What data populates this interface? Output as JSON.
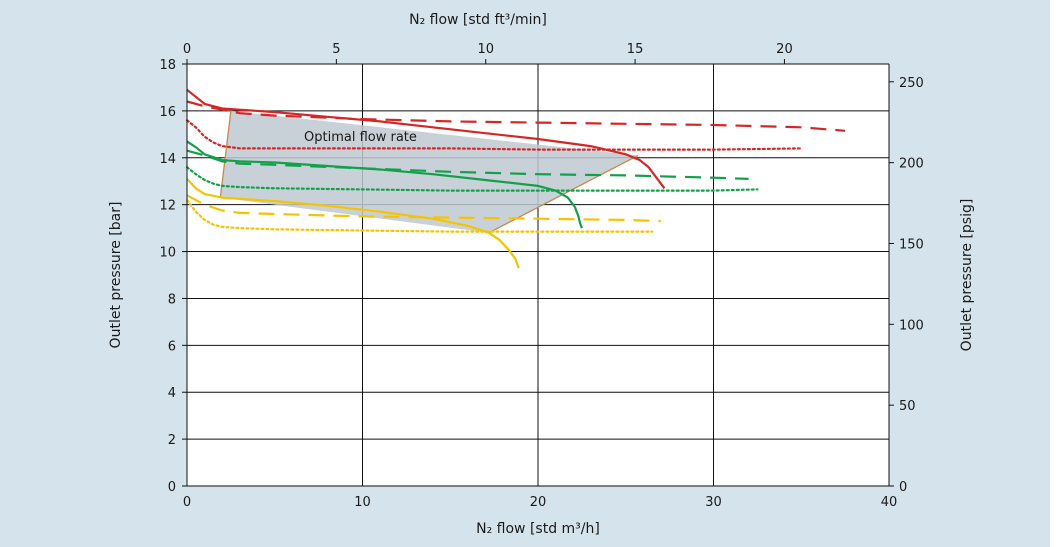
{
  "chart_data": {
    "type": "line",
    "title": "",
    "axes": {
      "bottom_label": "N₂ flow [std m³/h]",
      "top_label": "N₂ flow [std ft³/min]",
      "left_label": "Outlet pressure [bar]",
      "right_label": "Outlet pressure [psig]",
      "bottom": {
        "range": [
          0,
          40
        ],
        "ticks": [
          "0",
          "10",
          "20",
          "30",
          "40"
        ]
      },
      "top": {
        "range": [
          0,
          23.5
        ],
        "ticks": [
          "0",
          "5",
          "10",
          "15",
          "20"
        ]
      },
      "left": {
        "range": [
          0,
          18
        ],
        "ticks": [
          "0",
          "2",
          "4",
          "6",
          "8",
          "10",
          "12",
          "14",
          "16",
          "18"
        ]
      },
      "right": {
        "range": [
          0,
          261
        ],
        "ticks": [
          "0",
          "50",
          "100",
          "150",
          "200",
          "250"
        ]
      }
    },
    "grid": true,
    "annotation": "Optimal flow rate",
    "colors": {
      "red": "#d62728",
      "green": "#12a04a",
      "yellow": "#f5c400",
      "region": "#c0c9d1",
      "boundary": "#c9894c"
    },
    "optimal_region": {
      "x": [
        2.5,
        1.9,
        17.2,
        25.7
      ],
      "y": [
        16.0,
        12.3,
        10.8,
        14.1
      ]
    },
    "series": [
      {
        "color": "red",
        "style": "solid",
        "x": [
          0,
          0.5,
          1,
          2,
          3,
          5,
          8,
          11,
          14,
          17,
          20,
          23,
          25,
          25.8,
          26.3,
          26.6,
          27.0,
          27.2
        ],
        "y": [
          16.9,
          16.6,
          16.3,
          16.1,
          16.05,
          15.95,
          15.75,
          15.55,
          15.3,
          15.05,
          14.8,
          14.5,
          14.15,
          13.9,
          13.6,
          13.3,
          12.9,
          12.7
        ]
      },
      {
        "color": "red",
        "style": "dashed",
        "x": [
          0,
          1,
          2,
          3,
          5,
          10,
          15,
          20,
          25,
          30,
          35,
          37.5
        ],
        "y": [
          16.4,
          16.2,
          16.05,
          15.9,
          15.8,
          15.65,
          15.55,
          15.5,
          15.45,
          15.4,
          15.3,
          15.15
        ]
      },
      {
        "color": "red",
        "style": "dotted",
        "x": [
          0,
          0.5,
          1,
          1.5,
          2,
          3,
          5,
          10,
          15,
          20,
          25,
          30,
          35
        ],
        "y": [
          15.6,
          15.3,
          14.9,
          14.65,
          14.5,
          14.4,
          14.4,
          14.4,
          14.4,
          14.35,
          14.35,
          14.35,
          14.4
        ]
      },
      {
        "color": "green",
        "style": "solid",
        "x": [
          0,
          0.5,
          1,
          2,
          3,
          5,
          8,
          11,
          14,
          17,
          20,
          21,
          21.7,
          22.1,
          22.3,
          22.4,
          22.5
        ],
        "y": [
          14.7,
          14.45,
          14.15,
          13.9,
          13.85,
          13.8,
          13.65,
          13.5,
          13.3,
          13.05,
          12.8,
          12.6,
          12.3,
          11.9,
          11.5,
          11.2,
          11.0
        ]
      },
      {
        "color": "green",
        "style": "dashed",
        "x": [
          0,
          1,
          2,
          3,
          5,
          10,
          15,
          20,
          25,
          30,
          32
        ],
        "y": [
          14.3,
          14.1,
          13.85,
          13.75,
          13.7,
          13.55,
          13.4,
          13.3,
          13.25,
          13.15,
          13.1
        ]
      },
      {
        "color": "green",
        "style": "dotted",
        "x": [
          0,
          0.5,
          1,
          1.5,
          2,
          3,
          5,
          10,
          15,
          20,
          25,
          30,
          32.5
        ],
        "y": [
          13.6,
          13.3,
          13.05,
          12.9,
          12.8,
          12.75,
          12.7,
          12.65,
          12.6,
          12.6,
          12.6,
          12.6,
          12.65
        ]
      },
      {
        "color": "yellow",
        "style": "solid",
        "x": [
          0,
          0.5,
          1,
          2,
          3,
          5,
          8,
          11,
          14,
          16,
          17.2,
          17.8,
          18.3,
          18.7,
          18.9
        ],
        "y": [
          13.1,
          12.7,
          12.45,
          12.3,
          12.25,
          12.15,
          11.95,
          11.7,
          11.4,
          11.1,
          10.8,
          10.5,
          10.1,
          9.7,
          9.3
        ]
      },
      {
        "color": "yellow",
        "style": "dashed",
        "x": [
          0,
          1,
          2,
          3,
          5,
          10,
          15,
          20,
          25,
          27
        ],
        "y": [
          12.4,
          12.0,
          11.75,
          11.65,
          11.6,
          11.5,
          11.45,
          11.4,
          11.35,
          11.3
        ]
      },
      {
        "color": "yellow",
        "style": "dotted",
        "x": [
          0,
          0.5,
          1,
          1.5,
          2,
          3,
          5,
          10,
          15,
          20,
          25,
          26.5
        ],
        "y": [
          12.2,
          11.7,
          11.35,
          11.15,
          11.05,
          11.0,
          10.95,
          10.9,
          10.85,
          10.85,
          10.85,
          10.85
        ]
      }
    ]
  }
}
